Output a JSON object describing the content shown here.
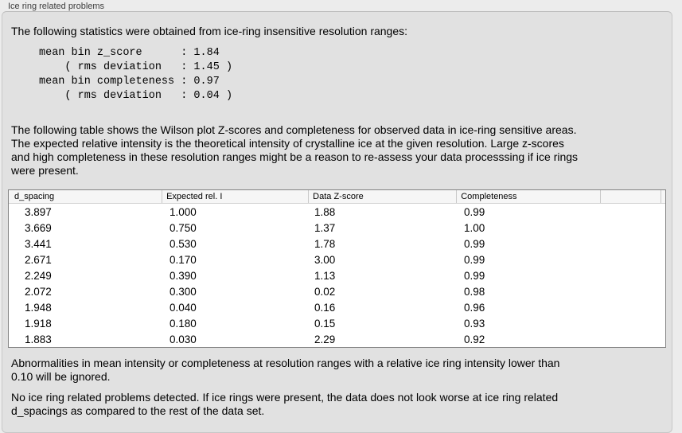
{
  "section": {
    "title": "Ice ring related problems"
  },
  "intro": {
    "text": "The following statistics were obtained from ice-ring insensitive resolution ranges:"
  },
  "stats": {
    "text": "mean bin z_score      : 1.84\n    ( rms deviation   : 1.45 )\nmean bin completeness : 0.97\n    ( rms deviation   : 0.04 )",
    "mean_bin_z_score": "1.84",
    "z_score_rms_deviation": "1.45",
    "mean_bin_completeness": "0.97",
    "completeness_rms_deviation": "0.04"
  },
  "table_note": {
    "text": "The following table shows the Wilson plot Z-scores and completeness for observed data in ice-ring sensitive areas.\nThe expected relative intensity is the theoretical intensity of crystalline ice at the given resolution. Large z-scores\nand high completeness in these resolution ranges might be a reason to re-assess your data processsing if ice rings\nwere present."
  },
  "ice_table": {
    "columns": [
      "d_spacing",
      "Expected rel. I",
      "Data Z-score",
      "Completeness"
    ],
    "rows": [
      [
        "3.897",
        "1.000",
        "1.88",
        "0.99"
      ],
      [
        "3.669",
        "0.750",
        "1.37",
        "1.00"
      ],
      [
        "3.441",
        "0.530",
        "1.78",
        "0.99"
      ],
      [
        "2.671",
        "0.170",
        "3.00",
        "0.99"
      ],
      [
        "2.249",
        "0.390",
        "1.13",
        "0.99"
      ],
      [
        "2.072",
        "0.300",
        "0.02",
        "0.98"
      ],
      [
        "1.948",
        "0.040",
        "0.16",
        "0.96"
      ],
      [
        "1.918",
        "0.180",
        "0.15",
        "0.93"
      ],
      [
        "1.883",
        "0.030",
        "2.29",
        "0.92"
      ]
    ]
  },
  "notes": {
    "ignore": "Abnormalities in mean intensity or completeness at resolution ranges with a relative ice ring intensity lower than\n0.10 will be ignored.",
    "conclusion": "No ice ring related problems detected. If ice rings were present, the data does not look worse at ice ring related\nd_spacings as compared to the rest of the data set."
  },
  "colors": {
    "outer_background": "#ececec",
    "panel_background": "#e1e1e1",
    "panel_border": "#c7c7c7",
    "table_border": "#848484",
    "table_header_background": "#f6f6f6",
    "table_header_separator": "#c9c9c9",
    "text": "#000000",
    "label_text": "#3c3c3c"
  }
}
